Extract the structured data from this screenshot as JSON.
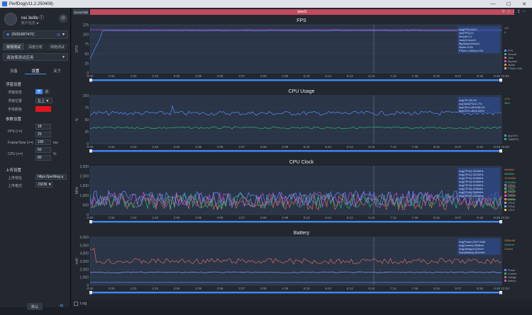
{
  "app": {
    "title": "PerfDog(v11.2.250408)"
  },
  "window": {
    "minimize": "—",
    "maximize": "☐",
    "close": "✕"
  },
  "user": {
    "name": "nei 3elife ⓘ",
    "sub": "账户信息 ♣",
    "logout": "⏻"
  },
  "device": {
    "name": "25053RT47C",
    "wifi": "≋",
    "dropdown": "▼"
  },
  "modes": [
    "常规测试",
    "深度分析",
    "网络测试"
  ],
  "app_select": {
    "placeholder": "请选择测试应用",
    "dropdown": "▼"
  },
  "subtabs": [
    "设备",
    "设置",
    "关于"
  ],
  "settings": {
    "float_title": "浮窗设置",
    "float_state": {
      "label": "浮窗状态",
      "on": "开",
      "off": "关"
    },
    "float_pos": {
      "label": "浮窗位置",
      "value": "左上 ▼"
    },
    "font_color": {
      "label": "字体颜色",
      "color": "#e0161c"
    },
    "param_title": "参数设置",
    "fps": {
      "label": "FPS (>=)",
      "v1": "18",
      "v2": "25"
    },
    "frametime": {
      "label": "FrameTime (>=)",
      "v": "100",
      "unit": "ms"
    },
    "cpu": {
      "label": "CPU (>=)",
      "v1": "60",
      "v2": "80",
      "unit": "%"
    },
    "upload_title": "上传设置",
    "upload_addr": {
      "label": "上传地址",
      "value": "https://perfdog.q"
    },
    "upload_fmt": {
      "label": "上传格式",
      "value": "JSON ▼"
    }
  },
  "sidebar_bottom": {
    "default": "默认",
    "collapse": "«"
  },
  "label_bar": {
    "tag": "SceneTab",
    "label": "label1"
  },
  "top_icons": [
    "⚙",
    "◷",
    "⇩",
    "↥",
    "⋯"
  ],
  "x_ticks": [
    "0:00",
    "0:31",
    "1:02",
    "1:33",
    "2:04",
    "2:35",
    "3:06",
    "3:37",
    "4:08",
    "4:39",
    "5:10",
    "5:41",
    "6:12",
    "6:43",
    "7:14",
    "7:45",
    "8:16",
    "8:47",
    "9:18",
    "9:49 10:03"
  ],
  "colors": {
    "blue_series": "#5b8cff",
    "green_series": "#2bb673",
    "magenta": "#c74ed6",
    "red_series": "#d96a5a",
    "accent": "#3d86f5"
  },
  "charts": [
    {
      "title": "FPS",
      "ylabel": "FPS",
      "yticks": [
        "125",
        "100",
        "75",
        "50",
        "25",
        "0"
      ],
      "info": [
        "Avg(FPS):118.2",
        "Var(FPS):0.2",
        "Smooth:1.0",
        "Jank(/10min):0",
        "BigJank(/10min):0",
        "Stutter:0.0%",
        "FTime>=100ms:0.0%"
      ],
      "legend": [
        "FPS",
        "Smooth",
        "Jank",
        "BigJank",
        "Stutter",
        "FTime>=100"
      ],
      "right_vals": [
        "119",
        "0"
      ]
    },
    {
      "title": "CPU Usage",
      "ylabel": "%",
      "yticks": [
        "100",
        "75",
        "50",
        "25",
        "0"
      ],
      "info": [
        "AvgCPU:55.2%",
        "AvgTotalCPU:21.7%",
        "AppCPU<=60%:88.4%",
        "AppCPU<=80%:100%"
      ],
      "legend": [
        "AppCPU",
        "TotalCPU"
      ],
      "right_vals": [
        "17%",
        "28%"
      ]
    },
    {
      "title": "CPU Clock",
      "ylabel": "MHz",
      "yticks": [
        "2,500",
        "2,000",
        "1,500",
        "1,000",
        "500",
        "0"
      ],
      "info": [
        "Avg(CPU0):1024MHz",
        "Avg(CPU1):1031MHz",
        "Avg(CPU2):1018MHz",
        "Avg(CPU3):1040MHz",
        "Avg(CPU4):1210MHz",
        "Avg(CPU5):1198MHz",
        "Avg(CPU6):1186MHz",
        "Avg(CPU7):1232MHz"
      ],
      "legend": [
        "CPU0",
        "CPU1",
        "CPU2",
        "CPU3",
        "CPU4",
        "CPU5",
        "CPU6",
        "CPU7"
      ],
      "right_vals": [
        "960MHz",
        "960MHz",
        "1574MHz",
        "1574MHz",
        "1574MHz",
        "1574MHz",
        "1574MHz",
        "1786MHz"
      ]
    },
    {
      "title": "Battery",
      "ylabel": "mW",
      "yticks": [
        "6,000",
        "5,000",
        "4,000",
        "3,000",
        "2,000",
        "1,000",
        "0"
      ],
      "info": [
        "Avg(Power):2947.9mW",
        "Avg(Current):2558mA",
        "Avg(Voltage):4120mV",
        "Sum(Battery):481mWh"
      ],
      "legend": [
        "Power",
        "Current",
        "Voltage",
        "Battery"
      ],
      "right_vals": [
        "3285mW",
        "4191mV",
        "414mA"
      ]
    }
  ],
  "status": {
    "log": "Log"
  }
}
